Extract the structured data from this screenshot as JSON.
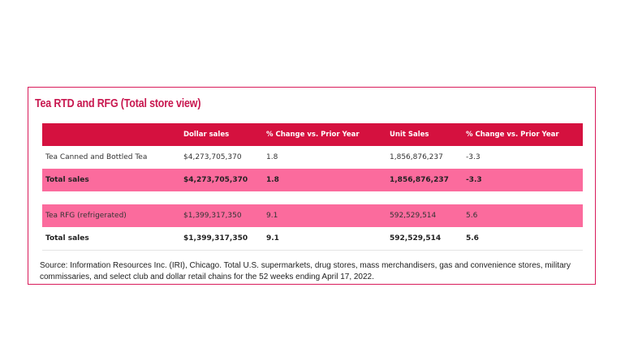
{
  "title": "Tea RTD and RFG (Total store view)",
  "table": {
    "headers": [
      "",
      "Dollar sales",
      "% Change vs. Prior Year",
      "Unit Sales",
      "% Change vs. Prior Year"
    ],
    "rows": [
      [
        "Tea Canned and Bottled Tea",
        "$4,273,705,370",
        "1.8",
        "1,856,876,237",
        "-3.3"
      ],
      [
        "Total sales",
        "$4,273,705,370",
        "1.8",
        "1,856,876,237",
        "-3.3"
      ],
      [
        "Tea RFG (refrigerated)",
        "$1,399,317,350",
        "9.1",
        "592,529,514",
        "5.6"
      ],
      [
        "Total sales",
        "$1,399,317,350",
        "9.1",
        "592,529,514",
        "5.6"
      ]
    ]
  },
  "source": "Source: Information Resources Inc. (IRI), Chicago. Total U.S. supermarkets, drug stores, mass merchandisers, gas and convenience stores, military commissaries, and select club and dollar retail chains for the 52 weeks ending April 17, 2022.",
  "colors": {
    "accent": "#d5113f",
    "title": "#c8174f",
    "row_highlight": "#fb6b9d",
    "border": "#d81b5a"
  }
}
